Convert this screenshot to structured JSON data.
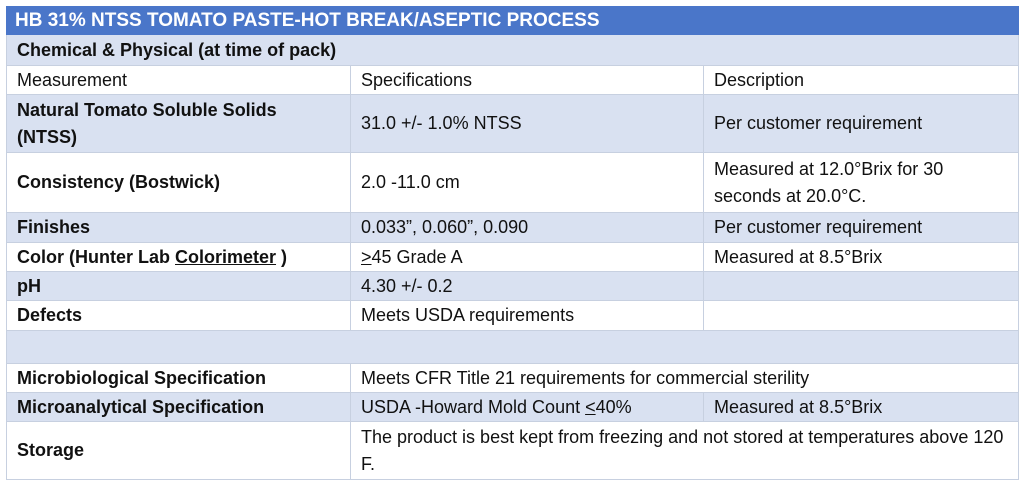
{
  "title": "HB 31% NTSS TOMATO PASTE-HOT BREAK/ASEPTIC PROCESS",
  "section": "Chemical & Physical (at time of pack)",
  "headers": [
    "Measurement",
    "Specifications",
    "Description"
  ],
  "rows": [
    {
      "measurement": "Natural Tomato Soluble Solids (NTSS)",
      "spec": "31.0 +/- 1.0% NTSS",
      "description": "Per customer requirement"
    },
    {
      "measurement": "Consistency (Bostwick)",
      "spec": "2.0 -11.0 cm",
      "description": "Measured at 12.0°Brix for 30 seconds at 20.0°C."
    },
    {
      "measurement": "Finishes",
      "spec": "0.033”, 0.060”, 0.090",
      "description": "Per customer requirement"
    },
    {
      "measurement_prefix": "Color (Hunter Lab ",
      "measurement_underlined": "Colorimeter",
      "measurement_suffix": " )",
      "spec_prefix": ">",
      "spec_suffix": "45 Grade A",
      "description": "Measured at 8.5°Brix"
    },
    {
      "measurement": "pH",
      "spec": "4.30 +/- 0.2",
      "description": ""
    },
    {
      "measurement": "Defects",
      "spec": "Meets USDA requirements",
      "description": ""
    }
  ],
  "micro": [
    {
      "measurement": "Microbiological Specification",
      "spec": "Meets CFR Title 21 requirements for commercial sterility"
    },
    {
      "measurement": "Microanalytical Specification",
      "spec_prefix": "USDA -Howard Mold Count ",
      "spec_underlined": "<",
      "spec_suffix": "40%",
      "description": "Measured at 8.5°Brix"
    },
    {
      "measurement": "Storage",
      "spec": "The product is best kept from freezing and not stored at temperatures above 120 F."
    }
  ]
}
